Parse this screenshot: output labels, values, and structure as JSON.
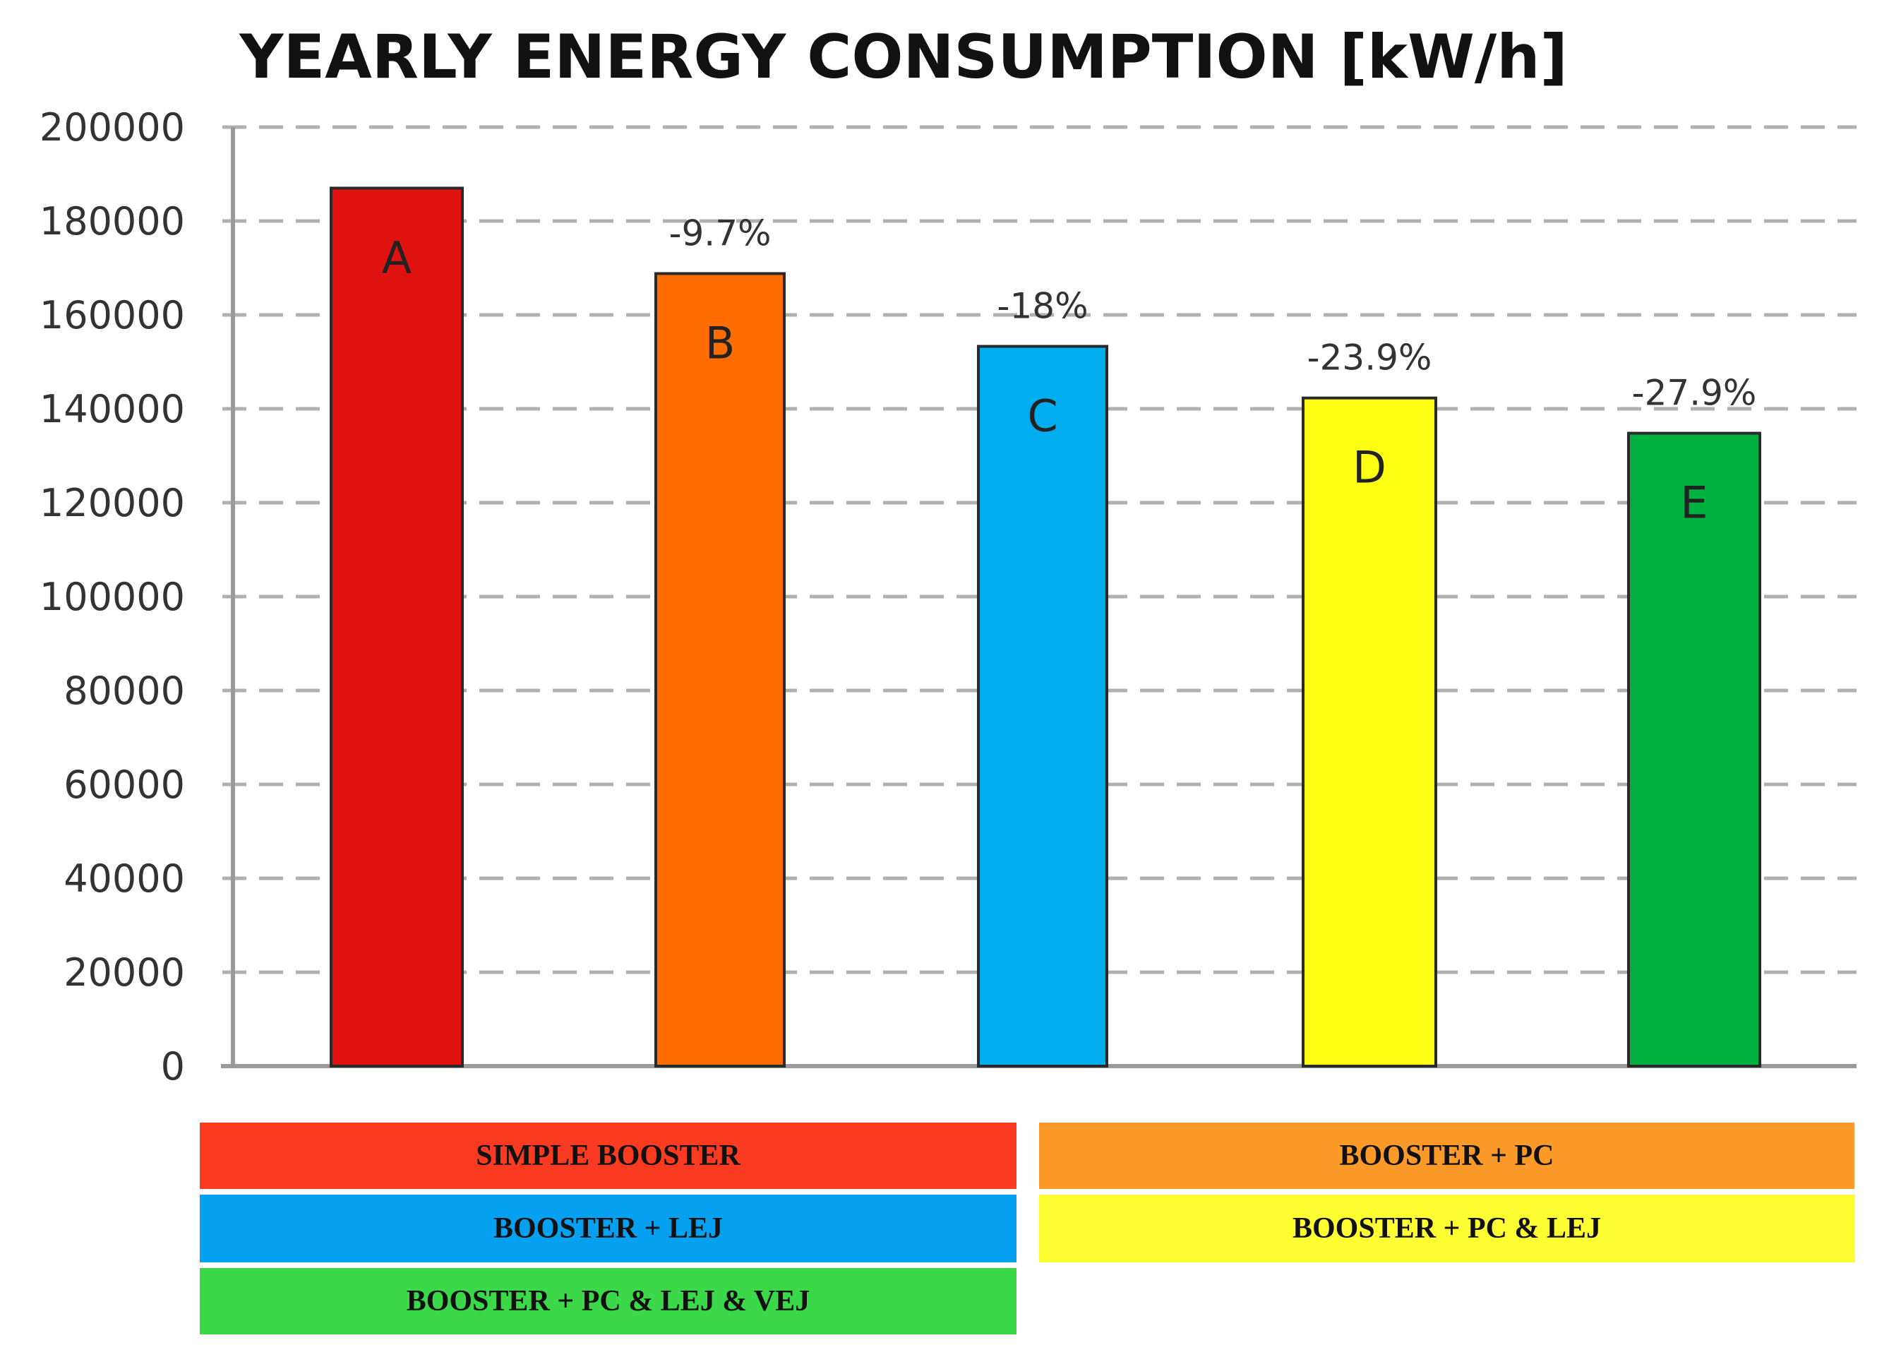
{
  "chart_data": {
    "type": "bar",
    "title": "YEARLY ENERGY CONSUMPTION [kW/h]",
    "xlabel": "",
    "ylabel": "",
    "ylim": [
      0,
      200000
    ],
    "y_ticks": [
      "0",
      "20000",
      "40000",
      "60000",
      "80000",
      "100000",
      "120000",
      "140000",
      "160000",
      "180000",
      "200000"
    ],
    "grid": true,
    "categories": [
      "A",
      "B",
      "C",
      "D",
      "E"
    ],
    "values": [
      187000,
      168800,
      153300,
      142300,
      134800
    ],
    "annotations": [
      "",
      "-9.7%",
      "-18%",
      "-23.9%",
      "-27.9%"
    ],
    "colors": [
      "#e0120f",
      "#ff6d00",
      "#00aeef",
      "#ffff14",
      "#00b140"
    ],
    "legend": [
      {
        "label": "SIMPLE BOOSTER",
        "color": "#fa3b22"
      },
      {
        "label": "BOOSTER + PC",
        "color": "#fb9a28"
      },
      {
        "label": "BOOSTER + LEJ",
        "color": "#05a0f0"
      },
      {
        "label": "BOOSTER + PC & LEJ",
        "color": "#ffff33"
      },
      {
        "label": "BOOSTER + PC & LEJ & VEJ",
        "color": "#3bd84a"
      }
    ]
  }
}
